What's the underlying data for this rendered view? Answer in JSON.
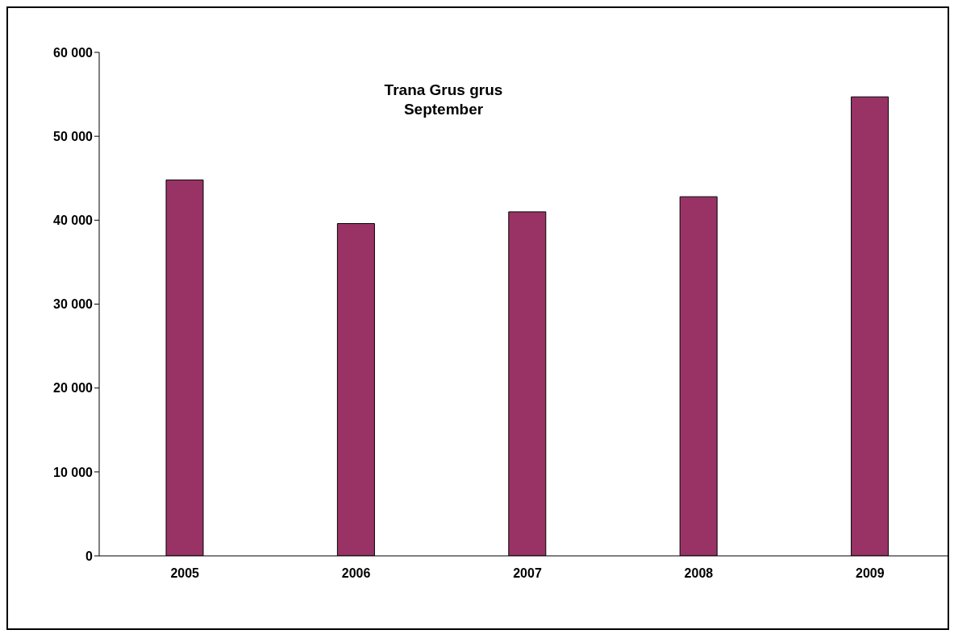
{
  "chart_data": {
    "type": "bar",
    "title": "Trana Grus grus",
    "subtitle": "September",
    "categories": [
      "2005",
      "2006",
      "2007",
      "2008",
      "2009"
    ],
    "values": [
      44800,
      39600,
      41000,
      42800,
      54700
    ],
    "color": "#993366",
    "ylim": [
      0,
      60000
    ],
    "yticks": [
      {
        "value": 0,
        "label": "0"
      },
      {
        "value": 10000,
        "label": "10 000"
      },
      {
        "value": 20000,
        "label": "20 000"
      },
      {
        "value": 30000,
        "label": "30 000"
      },
      {
        "value": 40000,
        "label": "40 000"
      },
      {
        "value": 50000,
        "label": "50 000"
      },
      {
        "value": 60000,
        "label": "60 000"
      }
    ],
    "grid": false,
    "legend": false
  }
}
